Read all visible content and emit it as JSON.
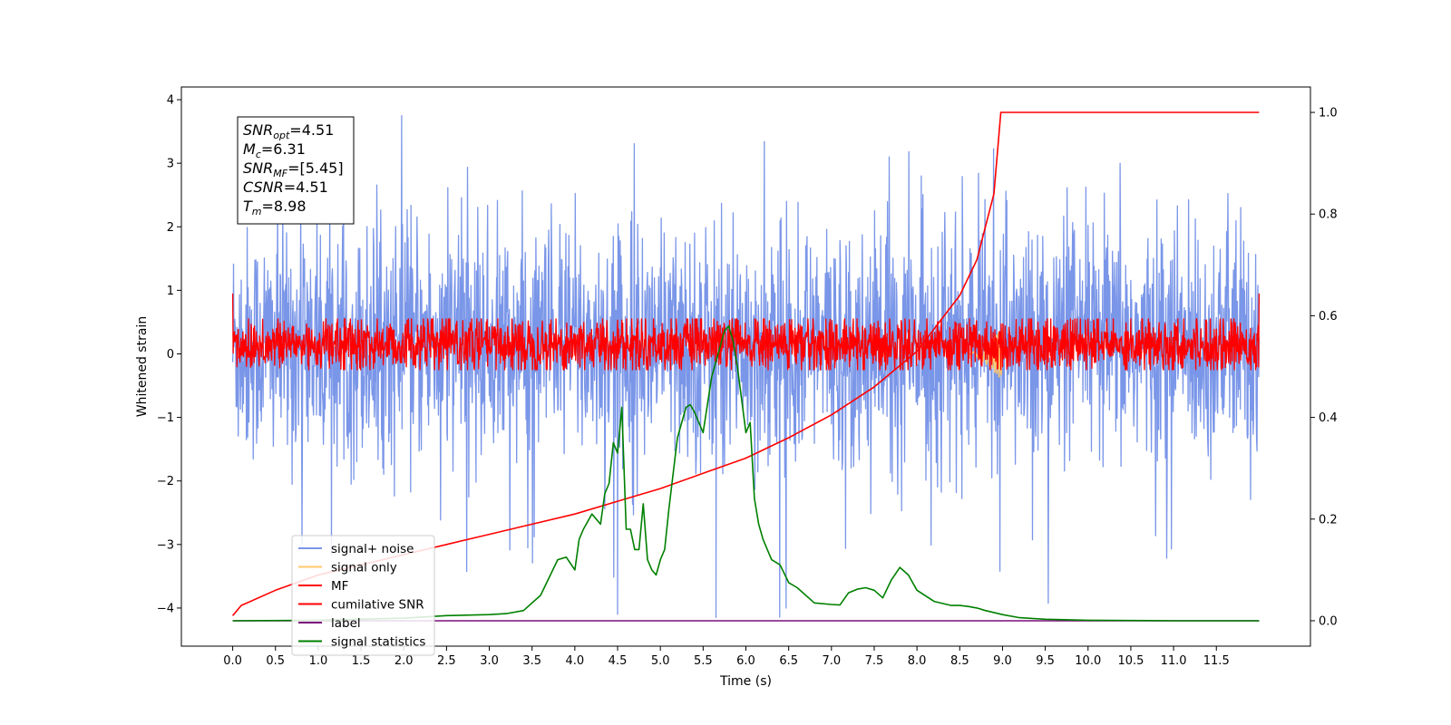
{
  "chart_data": {
    "type": "line",
    "xlabel": "Time (s)",
    "ylabel": "Whitened strain",
    "xlim": [
      -0.6,
      12.6
    ],
    "ylim": [
      -4.6,
      4.2
    ],
    "y2lim": [
      -0.05,
      1.05
    ],
    "x_ticks": [
      0.0,
      0.5,
      1.0,
      1.5,
      2.0,
      2.5,
      3.0,
      3.5,
      4.0,
      4.5,
      5.0,
      5.5,
      6.0,
      6.5,
      7.0,
      7.5,
      8.0,
      8.5,
      9.0,
      9.5,
      10.0,
      10.5,
      11.0,
      11.5
    ],
    "x_tick_labels": [
      "0.0",
      "0.5",
      "1.0",
      "1.5",
      "2.0",
      "2.5",
      "3.0",
      "3.5",
      "4.0",
      "4.5",
      "5.0",
      "5.5",
      "6.0",
      "6.5",
      "7.0",
      "7.5",
      "8.0",
      "8.5",
      "9.0",
      "9.5",
      "10.0",
      "10.5",
      "11.0",
      "11.5"
    ],
    "y_ticks": [
      -4,
      -3,
      -2,
      -1,
      0,
      1,
      2,
      3,
      4
    ],
    "y_tick_labels": [
      "−4",
      "−3",
      "−2",
      "−1",
      "0",
      "1",
      "2",
      "3",
      "4"
    ],
    "y2_ticks": [
      0.0,
      0.2,
      0.4,
      0.6,
      0.8,
      1.0
    ],
    "y2_tick_labels": [
      "0.0",
      "0.2",
      "0.4",
      "0.6",
      "0.8",
      "1.0"
    ],
    "legend_position": "lower-left",
    "grid": false,
    "info_box": [
      {
        "main": "SNR",
        "sub": "opt",
        "rest": "=4.51"
      },
      {
        "main": "M",
        "sub": "c",
        "rest": "=6.31"
      },
      {
        "main": "SNR",
        "sub": "MF",
        "rest": "=[5.45]"
      },
      {
        "main": "CSNR",
        "sub": "",
        "rest": "=4.51"
      },
      {
        "main": "T",
        "sub": "m",
        "rest": "=8.98"
      }
    ],
    "series": [
      {
        "name": "signal+ noise",
        "color": "#7a96e8",
        "axis": "left",
        "kind": "noise",
        "x_range": [
          0,
          12
        ],
        "y_typical_range": [
          -1.5,
          1.8
        ],
        "y_extremes": [
          -4.15,
          3.8
        ]
      },
      {
        "name": "signal only",
        "color": "#ffc96b",
        "axis": "left",
        "kind": "chirp",
        "x_range": [
          8.6,
          9.0
        ],
        "y_range": [
          -0.45,
          0.4
        ]
      },
      {
        "name": "MF",
        "color": "#ff0000",
        "axis": "left",
        "kind": "noise",
        "x_range": [
          0,
          12
        ],
        "y_typical_range": [
          -0.25,
          0.55
        ]
      },
      {
        "name": "cumilative SNR",
        "color": "#ff0000",
        "axis": "right",
        "x": [
          0.0,
          0.1,
          0.5,
          1.0,
          1.5,
          2.0,
          2.5,
          3.0,
          3.5,
          4.0,
          4.5,
          5.0,
          5.5,
          6.0,
          6.5,
          7.0,
          7.5,
          8.0,
          8.5,
          8.7,
          8.9,
          8.98,
          9.0,
          12.0
        ],
        "y": [
          0.01,
          0.03,
          0.06,
          0.09,
          0.11,
          0.13,
          0.15,
          0.17,
          0.19,
          0.21,
          0.235,
          0.26,
          0.29,
          0.32,
          0.36,
          0.405,
          0.46,
          0.53,
          0.64,
          0.71,
          0.84,
          1.0,
          1.0,
          1.0
        ]
      },
      {
        "name": "label",
        "color": "#7b0f7b",
        "axis": "right",
        "x": [
          0.0,
          12.0
        ],
        "y": [
          0.0,
          0.0
        ]
      },
      {
        "name": "signal statistics",
        "color": "#008000",
        "axis": "right",
        "x": [
          0.0,
          1.0,
          2.0,
          2.5,
          3.0,
          3.2,
          3.4,
          3.6,
          3.8,
          3.9,
          4.0,
          4.05,
          4.1,
          4.2,
          4.3,
          4.35,
          4.4,
          4.45,
          4.5,
          4.55,
          4.6,
          4.65,
          4.7,
          4.75,
          4.8,
          4.85,
          4.9,
          4.95,
          5.0,
          5.05,
          5.1,
          5.2,
          5.3,
          5.35,
          5.4,
          5.5,
          5.6,
          5.7,
          5.75,
          5.8,
          5.85,
          5.9,
          6.0,
          6.05,
          6.1,
          6.15,
          6.2,
          6.3,
          6.4,
          6.5,
          6.6,
          6.8,
          7.0,
          7.1,
          7.2,
          7.3,
          7.4,
          7.5,
          7.6,
          7.7,
          7.8,
          7.9,
          8.0,
          8.2,
          8.4,
          8.5,
          8.6,
          8.7,
          8.8,
          9.0,
          9.2,
          9.5,
          10.0,
          11.0,
          12.0
        ],
        "y": [
          0.0,
          0.001,
          0.005,
          0.01,
          0.012,
          0.014,
          0.02,
          0.05,
          0.12,
          0.125,
          0.1,
          0.16,
          0.18,
          0.21,
          0.19,
          0.25,
          0.27,
          0.35,
          0.33,
          0.42,
          0.18,
          0.18,
          0.14,
          0.14,
          0.23,
          0.12,
          0.1,
          0.09,
          0.12,
          0.14,
          0.22,
          0.36,
          0.42,
          0.425,
          0.41,
          0.37,
          0.48,
          0.54,
          0.57,
          0.58,
          0.55,
          0.5,
          0.37,
          0.39,
          0.24,
          0.19,
          0.16,
          0.12,
          0.11,
          0.075,
          0.065,
          0.035,
          0.032,
          0.031,
          0.055,
          0.062,
          0.065,
          0.06,
          0.045,
          0.08,
          0.105,
          0.09,
          0.06,
          0.038,
          0.03,
          0.03,
          0.028,
          0.025,
          0.02,
          0.012,
          0.006,
          0.003,
          0.001,
          0.0,
          0.0
        ]
      }
    ]
  }
}
